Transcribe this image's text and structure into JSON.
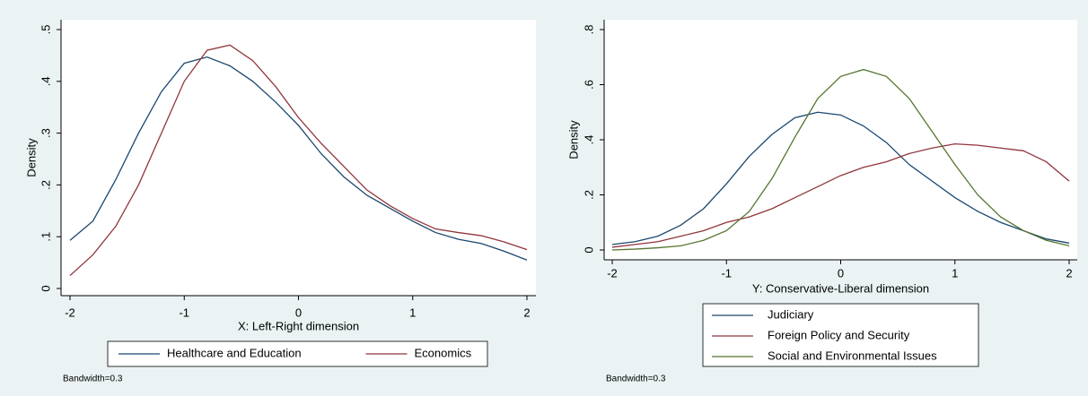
{
  "chart_data": [
    {
      "type": "line",
      "xlabel": "X: Left-Right dimension",
      "ylabel": "Density",
      "note": "Bandwidth=0.3",
      "x": [
        -2,
        -1.8,
        -1.6,
        -1.4,
        -1.2,
        -1,
        -0.8,
        -0.6,
        -0.4,
        -0.2,
        0,
        0.2,
        0.4,
        0.6,
        0.8,
        1,
        1.2,
        1.4,
        1.6,
        1.8,
        2
      ],
      "series": [
        {
          "name": "Healthcare and Education",
          "color": "#1a476f",
          "values": [
            0.093,
            0.13,
            0.21,
            0.3,
            0.38,
            0.435,
            0.447,
            0.43,
            0.4,
            0.36,
            0.315,
            0.26,
            0.215,
            0.18,
            0.155,
            0.13,
            0.108,
            0.095,
            0.087,
            0.072,
            0.055
          ]
        },
        {
          "name": "Economics",
          "color": "#90353b",
          "values": [
            0.025,
            0.065,
            0.12,
            0.2,
            0.3,
            0.4,
            0.46,
            0.47,
            0.44,
            0.39,
            0.33,
            0.28,
            0.235,
            0.19,
            0.16,
            0.135,
            0.115,
            0.108,
            0.102,
            0.09,
            0.075
          ]
        }
      ],
      "xlim": [
        -2,
        2
      ],
      "xticks": [
        -2,
        -1,
        0,
        1,
        2
      ],
      "ylim": [
        0,
        0.5
      ],
      "yticks": [
        0,
        {
          "value": 0.1,
          "label": ".1"
        },
        {
          "value": 0.2,
          "label": ".2"
        },
        {
          "value": 0.3,
          "label": ".3"
        },
        {
          "value": 0.4,
          "label": ".4"
        },
        {
          "value": 0.5,
          "label": ".5"
        }
      ],
      "legend": "bottom"
    },
    {
      "type": "line",
      "xlabel": "Y: Conservative-Liberal dimension",
      "ylabel": "Density",
      "note": "Bandwidth=0.3",
      "x": [
        -2,
        -1.8,
        -1.6,
        -1.4,
        -1.2,
        -1,
        -0.8,
        -0.6,
        -0.4,
        -0.2,
        0,
        0.2,
        0.4,
        0.6,
        0.8,
        1,
        1.2,
        1.4,
        1.6,
        1.8,
        2
      ],
      "series": [
        {
          "name": "Judiciary",
          "color": "#1a476f",
          "values": [
            0.02,
            0.03,
            0.05,
            0.09,
            0.15,
            0.24,
            0.34,
            0.42,
            0.48,
            0.5,
            0.49,
            0.45,
            0.39,
            0.31,
            0.25,
            0.19,
            0.14,
            0.1,
            0.07,
            0.04,
            0.025
          ]
        },
        {
          "name": "Foreign Policy and Security",
          "color": "#90353b",
          "values": [
            0.01,
            0.02,
            0.03,
            0.05,
            0.07,
            0.1,
            0.12,
            0.15,
            0.19,
            0.23,
            0.27,
            0.3,
            0.32,
            0.35,
            0.37,
            0.385,
            0.38,
            0.37,
            0.36,
            0.32,
            0.25
          ]
        },
        {
          "name": "Social and Environmental Issues",
          "color": "#55752f",
          "values": [
            0,
            0.003,
            0.008,
            0.015,
            0.035,
            0.07,
            0.14,
            0.26,
            0.41,
            0.55,
            0.63,
            0.655,
            0.63,
            0.55,
            0.43,
            0.31,
            0.2,
            0.12,
            0.07,
            0.035,
            0.015
          ]
        }
      ],
      "xlim": [
        -2,
        2
      ],
      "xticks": [
        -2,
        -1,
        0,
        1,
        2
      ],
      "ylim": [
        0,
        0.8
      ],
      "yticks": [
        0,
        {
          "value": 0.2,
          "label": ".2"
        },
        {
          "value": 0.4,
          "label": ".4"
        },
        {
          "value": 0.6,
          "label": ".6"
        },
        {
          "value": 0.8,
          "label": ".8"
        }
      ],
      "legend": "bottom"
    }
  ]
}
